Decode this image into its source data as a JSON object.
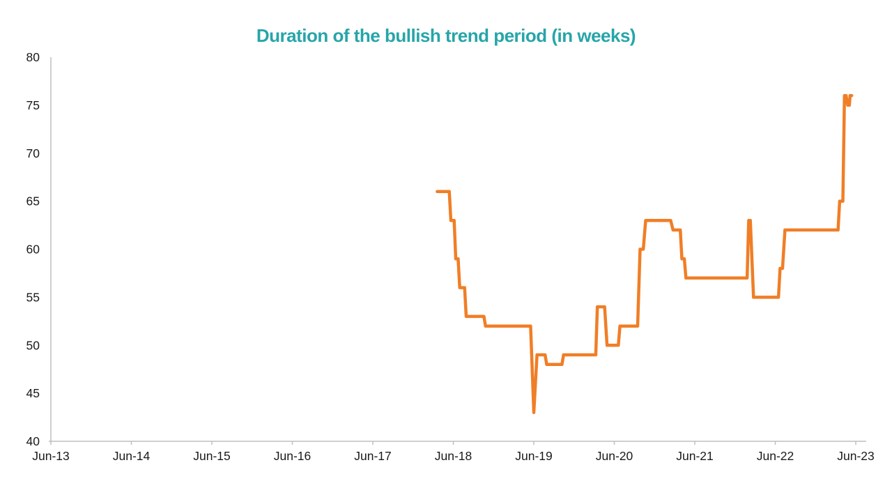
{
  "title": "Duration of the bullish trend period (in weeks)",
  "colors": {
    "line": "#F07E26",
    "title": "#27A5A9",
    "axis": "#BFBFBF",
    "tick_label": "#1A1A1A"
  },
  "chart_data": {
    "type": "line",
    "step_style": true,
    "title": "Duration of the bullish trend period (in weeks)",
    "xlabel": "",
    "ylabel": "",
    "x_tick_labels": [
      "Jun-13",
      "Jun-14",
      "Jun-15",
      "Jun-16",
      "Jun-17",
      "Jun-18",
      "Jun-19",
      "Jun-20",
      "Jun-21",
      "Jun-22",
      "Jun-23"
    ],
    "x_unit": "years since Jun-2013 (tick index 0-10)",
    "x_axis_extent": 10.13,
    "ylim": [
      40,
      80
    ],
    "y_ticks": [
      40,
      45,
      50,
      55,
      60,
      65,
      70,
      75,
      80
    ],
    "grid": false,
    "legend": false,
    "series": [
      {
        "name": "Duration of the bullish trend period (weeks)",
        "color": "#F07E26",
        "line_width": 4.5,
        "points": [
          [
            4.8,
            66
          ],
          [
            4.95,
            66
          ],
          [
            4.97,
            63
          ],
          [
            5.01,
            63
          ],
          [
            5.03,
            59
          ],
          [
            5.06,
            59
          ],
          [
            5.08,
            56
          ],
          [
            5.14,
            56
          ],
          [
            5.16,
            53
          ],
          [
            5.38,
            53
          ],
          [
            5.4,
            52
          ],
          [
            5.96,
            52
          ],
          [
            6.0,
            43
          ],
          [
            6.04,
            49
          ],
          [
            6.14,
            49
          ],
          [
            6.16,
            48
          ],
          [
            6.35,
            48
          ],
          [
            6.37,
            49
          ],
          [
            6.77,
            49
          ],
          [
            6.79,
            54
          ],
          [
            6.88,
            54
          ],
          [
            6.91,
            50
          ],
          [
            7.05,
            50
          ],
          [
            7.07,
            52
          ],
          [
            7.29,
            52
          ],
          [
            7.32,
            60
          ],
          [
            7.36,
            60
          ],
          [
            7.39,
            63
          ],
          [
            7.7,
            63
          ],
          [
            7.73,
            62
          ],
          [
            7.82,
            62
          ],
          [
            7.84,
            59
          ],
          [
            7.87,
            59
          ],
          [
            7.89,
            57
          ],
          [
            8.65,
            57
          ],
          [
            8.67,
            63
          ],
          [
            8.69,
            63
          ],
          [
            8.73,
            55
          ],
          [
            9.04,
            55
          ],
          [
            9.06,
            58
          ],
          [
            9.09,
            58
          ],
          [
            9.12,
            62
          ],
          [
            9.78,
            62
          ],
          [
            9.8,
            65
          ],
          [
            9.84,
            65
          ],
          [
            9.86,
            76
          ],
          [
            9.88,
            76
          ],
          [
            9.9,
            75
          ],
          [
            9.92,
            75
          ],
          [
            9.93,
            76
          ],
          [
            9.95,
            76
          ]
        ]
      }
    ]
  }
}
